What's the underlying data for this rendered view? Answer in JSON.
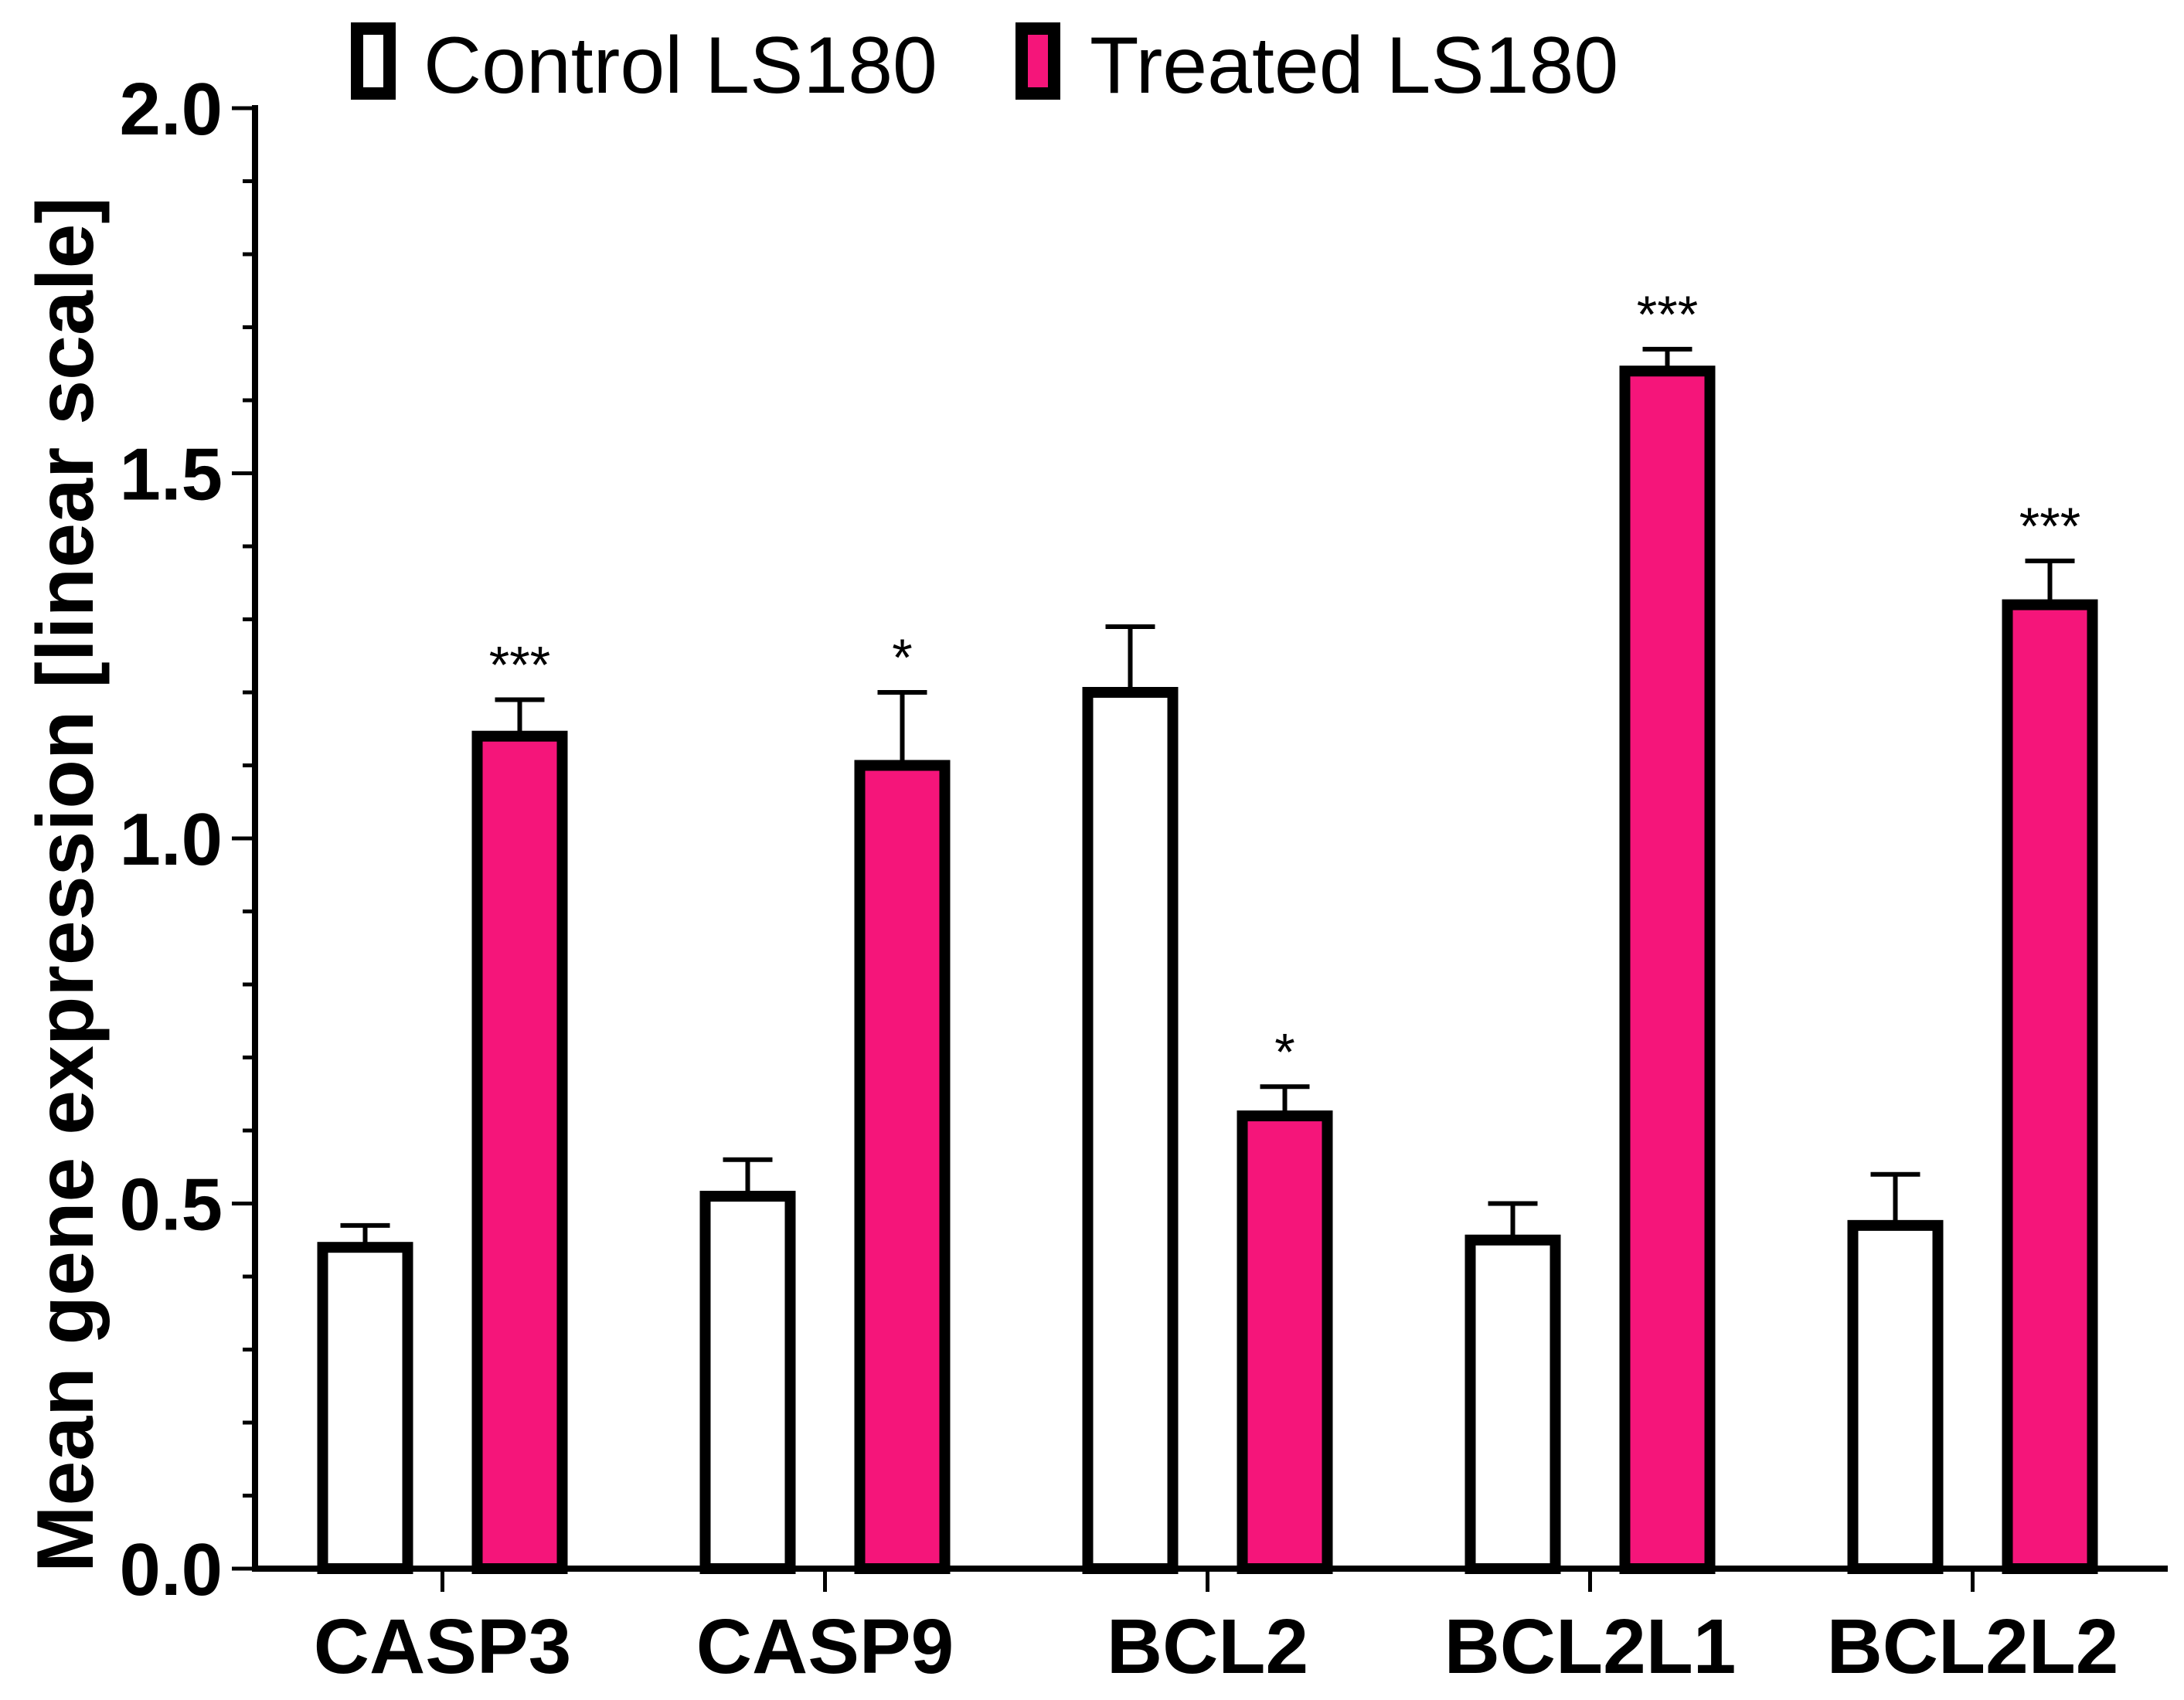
{
  "chart_data": {
    "type": "bar",
    "title": "",
    "xlabel": "",
    "ylabel": "Mean gene expression [linear scale]",
    "ylim": [
      0,
      2.0
    ],
    "yticks": [
      "0.0",
      "0.5",
      "1.0",
      "1.5",
      "2.0"
    ],
    "categories": [
      "CASP3",
      "CASP9",
      "BCL2",
      "BCL2L1",
      "BCL2L2"
    ],
    "series": [
      {
        "name": "Control LS180",
        "color": "#ffffff",
        "values": [
          0.44,
          0.51,
          1.2,
          0.45,
          0.47
        ],
        "errors": [
          0.03,
          0.05,
          0.09,
          0.05,
          0.07
        ],
        "significance": [
          "",
          "",
          "",
          "",
          ""
        ]
      },
      {
        "name": "Treated LS180",
        "color": "#f5157a",
        "values": [
          1.14,
          1.1,
          0.62,
          1.64,
          1.32
        ],
        "errors": [
          0.05,
          0.1,
          0.04,
          0.03,
          0.06
        ],
        "significance": [
          "***",
          "*",
          "*",
          "***",
          "***"
        ]
      }
    ],
    "legend_position": "top"
  }
}
